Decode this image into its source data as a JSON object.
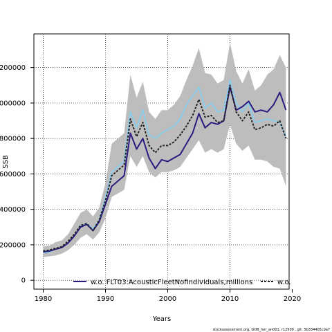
{
  "chart_data": {
    "type": "line",
    "title": "",
    "xlabel": "Years",
    "ylabel": "SSB",
    "xlim": [
      1978.5,
      2019.5
    ],
    "ylim": [
      -50000,
      1390000
    ],
    "x_ticks": [
      1980,
      1990,
      2000,
      2010,
      2020
    ],
    "y_ticks": [
      0,
      200000,
      400000,
      600000,
      800000,
      1000000,
      1200000
    ],
    "y_tick_labels": [
      "0",
      "200000",
      "400000",
      "600000",
      "800000",
      "1000000",
      "1200000"
    ],
    "grid": true,
    "x": [
      1980,
      1981,
      1982,
      1983,
      1984,
      1985,
      1986,
      1987,
      1988,
      1989,
      1990,
      1991,
      1992,
      1993,
      1994,
      1995,
      1996,
      1997,
      1998,
      1999,
      2000,
      2001,
      2002,
      2003,
      2004,
      2005,
      2006,
      2007,
      2008,
      2009,
      2010,
      2011,
      2012,
      2013,
      2014,
      2015,
      2016,
      2017,
      2018,
      2019
    ],
    "band": {
      "upper": [
        190000,
        195000,
        215000,
        225000,
        260000,
        320000,
        380000,
        400000,
        360000,
        410000,
        550000,
        770000,
        800000,
        830000,
        1160000,
        1030000,
        1120000,
        950000,
        910000,
        960000,
        960000,
        990000,
        1040000,
        1130000,
        1210000,
        1310000,
        1170000,
        1160000,
        1110000,
        1130000,
        1340000,
        1180000,
        1110000,
        1190000,
        1070000,
        1100000,
        1160000,
        1190000,
        1270000,
        1200000
      ],
      "lower": [
        130000,
        135000,
        140000,
        150000,
        170000,
        200000,
        240000,
        260000,
        230000,
        270000,
        350000,
        470000,
        490000,
        510000,
        700000,
        640000,
        700000,
        610000,
        580000,
        610000,
        610000,
        620000,
        640000,
        690000,
        740000,
        790000,
        720000,
        740000,
        720000,
        740000,
        880000,
        770000,
        730000,
        760000,
        680000,
        680000,
        670000,
        640000,
        630000,
        530000
      ]
    },
    "series": [
      {
        "name": "w.o. FLT03:AcousticFleetNofindividuals,millions",
        "color": "#2b1a80",
        "values": [
          160000,
          165000,
          175000,
          185000,
          210000,
          250000,
          300000,
          315000,
          280000,
          330000,
          430000,
          530000,
          560000,
          590000,
          830000,
          740000,
          800000,
          690000,
          630000,
          680000,
          670000,
          690000,
          710000,
          770000,
          830000,
          940000,
          860000,
          890000,
          880000,
          900000,
          1090000,
          960000,
          980000,
          1010000,
          950000,
          960000,
          950000,
          990000,
          1060000,
          960000
        ]
      },
      {
        "name": "w.o.",
        "color": "#222222",
        "values": [
          165000,
          170000,
          180000,
          190000,
          220000,
          260000,
          310000,
          320000,
          280000,
          340000,
          450000,
          590000,
          620000,
          650000,
          910000,
          810000,
          890000,
          760000,
          720000,
          760000,
          760000,
          780000,
          820000,
          870000,
          930000,
          1020000,
          920000,
          930000,
          890000,
          900000,
          1100000,
          950000,
          900000,
          950000,
          850000,
          860000,
          880000,
          870000,
          900000,
          800000
        ]
      },
      {
        "color": "#88ccee",
        "values": [
          155000,
          160000,
          175000,
          185000,
          210000,
          250000,
          305000,
          320000,
          290000,
          340000,
          470000,
          610000,
          640000,
          670000,
          950000,
          860000,
          960000,
          820000,
          800000,
          830000,
          850000,
          870000,
          910000,
          990000,
          1040000,
          1090000,
          970000,
          1000000,
          950000,
          960000,
          1130000,
          1000000,
          950000,
          1000000,
          890000,
          900000,
          910000,
          900000,
          890000,
          810000
        ]
      }
    ],
    "legend": {
      "entries": [
        "w.o. FLT03:AcousticFleetNofindividuals,millions",
        "w.o."
      ],
      "placement": "bottom"
    },
    "band_color": "#bdbdbd"
  },
  "footer": "stockassessment.org, GOB_her_an001, r12509 , git: 5b334405cda7"
}
